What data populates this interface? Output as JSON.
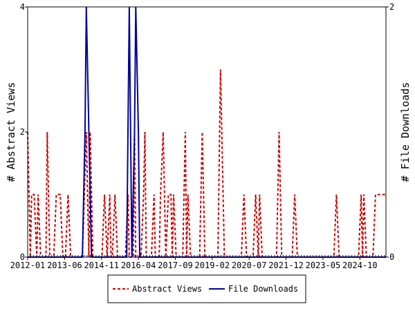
{
  "chart_data": {
    "type": "line",
    "ylabel_left": "# Abstract Views",
    "ylabel_right": "# File Downloads",
    "ylim_left": [
      0,
      4
    ],
    "ylim_right": [
      0,
      2
    ],
    "yticks_left": [
      "0",
      "2",
      "4"
    ],
    "yticks_right": [
      "0",
      "2"
    ],
    "x_domain": [
      2012.0,
      2025.75
    ],
    "x_tick_labels": [
      "2012-01",
      "2013-06",
      "2014-11",
      "2016-04",
      "2017-09",
      "2019-02",
      "2020-07",
      "2021-12",
      "2023-05",
      "2024-10"
    ],
    "x_tick_values": [
      2012.0,
      2013.4167,
      2014.8333,
      2016.25,
      2017.6667,
      2019.0833,
      2020.5,
      2021.9167,
      2023.3333,
      2024.75
    ],
    "legend": {
      "placement": "bottom-center",
      "items": [
        "Abstract Views",
        "File Downloads"
      ]
    },
    "colors": {
      "abstract_views": "#cc0000",
      "file_downloads": "#000099"
    },
    "series": [
      {
        "name": "Abstract Views",
        "axis": "left",
        "points": [
          [
            2012.0,
            2
          ],
          [
            2012.05,
            1
          ],
          [
            2012.1,
            0
          ],
          [
            2012.15,
            1
          ],
          [
            2012.25,
            1
          ],
          [
            2012.35,
            0
          ],
          [
            2012.4,
            1
          ],
          [
            2012.5,
            0
          ],
          [
            2012.7,
            0
          ],
          [
            2012.75,
            2
          ],
          [
            2012.85,
            0
          ],
          [
            2013.0,
            0
          ],
          [
            2013.1,
            1
          ],
          [
            2013.25,
            1
          ],
          [
            2013.35,
            0
          ],
          [
            2013.45,
            0
          ],
          [
            2013.55,
            1
          ],
          [
            2013.65,
            0
          ],
          [
            2014.1,
            0
          ],
          [
            2014.25,
            2
          ],
          [
            2014.3,
            1
          ],
          [
            2014.35,
            0
          ],
          [
            2014.4,
            2
          ],
          [
            2014.5,
            0
          ],
          [
            2014.85,
            0
          ],
          [
            2014.95,
            1
          ],
          [
            2015.05,
            0
          ],
          [
            2015.15,
            1
          ],
          [
            2015.2,
            0
          ],
          [
            2015.25,
            0
          ],
          [
            2015.35,
            1
          ],
          [
            2015.45,
            0
          ],
          [
            2015.75,
            0
          ],
          [
            2015.85,
            1
          ],
          [
            2015.9,
            0
          ],
          [
            2016.05,
            0
          ],
          [
            2016.1,
            2
          ],
          [
            2016.15,
            0
          ],
          [
            2016.35,
            0
          ],
          [
            2016.45,
            1
          ],
          [
            2016.5,
            2
          ],
          [
            2016.55,
            0
          ],
          [
            2016.75,
            0
          ],
          [
            2016.85,
            1
          ],
          [
            2016.9,
            0
          ],
          [
            2017.05,
            0
          ],
          [
            2017.1,
            1
          ],
          [
            2017.2,
            2
          ],
          [
            2017.3,
            0
          ],
          [
            2017.4,
            1
          ],
          [
            2017.5,
            1
          ],
          [
            2017.55,
            0
          ],
          [
            2017.6,
            1
          ],
          [
            2017.7,
            0
          ],
          [
            2017.95,
            0
          ],
          [
            2018.05,
            2
          ],
          [
            2018.1,
            0
          ],
          [
            2018.15,
            1
          ],
          [
            2018.25,
            0
          ],
          [
            2018.6,
            0
          ],
          [
            2018.7,
            2
          ],
          [
            2018.8,
            0
          ],
          [
            2019.3,
            0
          ],
          [
            2019.4,
            3
          ],
          [
            2019.55,
            0
          ],
          [
            2020.2,
            0
          ],
          [
            2020.3,
            1
          ],
          [
            2020.4,
            0
          ],
          [
            2020.65,
            0
          ],
          [
            2020.75,
            1
          ],
          [
            2020.85,
            0
          ],
          [
            2020.9,
            1
          ],
          [
            2021.0,
            0
          ],
          [
            2021.55,
            0
          ],
          [
            2021.65,
            2
          ],
          [
            2021.75,
            0
          ],
          [
            2022.15,
            0
          ],
          [
            2022.25,
            1
          ],
          [
            2022.35,
            0
          ],
          [
            2023.75,
            0
          ],
          [
            2023.85,
            1
          ],
          [
            2023.95,
            0
          ],
          [
            2024.7,
            0
          ],
          [
            2024.8,
            1
          ],
          [
            2024.85,
            0
          ],
          [
            2024.9,
            1
          ],
          [
            2025.0,
            0
          ],
          [
            2025.25,
            0
          ],
          [
            2025.35,
            1
          ],
          [
            2025.75,
            1
          ]
        ]
      },
      {
        "name": "File Downloads",
        "axis": "right",
        "points": [
          [
            2012.0,
            0
          ],
          [
            2014.1,
            0
          ],
          [
            2014.2,
            1
          ],
          [
            2014.25,
            2
          ],
          [
            2014.35,
            1
          ],
          [
            2014.45,
            0
          ],
          [
            2015.8,
            0
          ],
          [
            2015.85,
            1
          ],
          [
            2015.9,
            2
          ],
          [
            2016.0,
            0
          ],
          [
            2016.1,
            1
          ],
          [
            2016.15,
            2
          ],
          [
            2016.25,
            1
          ],
          [
            2016.3,
            0
          ],
          [
            2025.75,
            0
          ]
        ]
      }
    ]
  }
}
